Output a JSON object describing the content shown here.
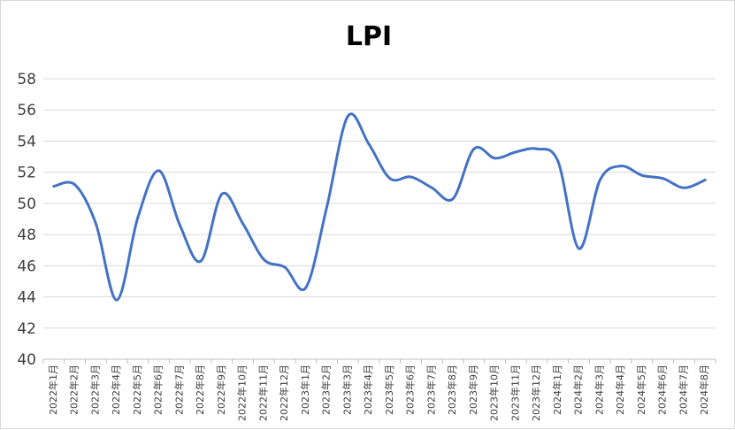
{
  "chart_data": {
    "type": "line",
    "title": "LPI",
    "xlabel": "",
    "ylabel": "",
    "ylim": [
      40,
      58
    ],
    "yticks": [
      "40",
      "42",
      "44",
      "46",
      "48",
      "50",
      "52",
      "54",
      "56",
      "58"
    ],
    "grid": true,
    "legend": "none",
    "series_color": "#4472c4",
    "categories": [
      "2022年1月",
      "2022年2月",
      "2022年3月",
      "2022年4月",
      "2022年5月",
      "2022年6月",
      "2022年7月",
      "2022年8月",
      "2022年9月",
      "2022年10月",
      "2022年11月",
      "2022年12月",
      "2023年1月",
      "2023年2月",
      "2023年3月",
      "2023年4月",
      "2023年5月",
      "2023年6月",
      "2023年7月",
      "2023年8月",
      "2023年9月",
      "2023年10月",
      "2023年11月",
      "2023年12月",
      "2024年1月",
      "2024年2月",
      "2024年3月",
      "2024年4月",
      "2024年5月",
      "2024年6月",
      "2024年7月",
      "2024年8月"
    ],
    "series": [
      {
        "values": [
          51.1,
          51.2,
          48.7,
          43.8,
          49.1,
          52.1,
          48.6,
          46.3,
          50.6,
          48.7,
          46.4,
          45.9,
          44.6,
          49.8,
          55.6,
          53.8,
          51.6,
          51.7,
          51.0,
          50.3,
          53.5,
          52.9,
          53.3,
          53.5,
          52.7,
          47.1,
          51.5,
          52.4,
          51.8,
          51.6,
          51.0,
          51.5
        ]
      }
    ]
  }
}
